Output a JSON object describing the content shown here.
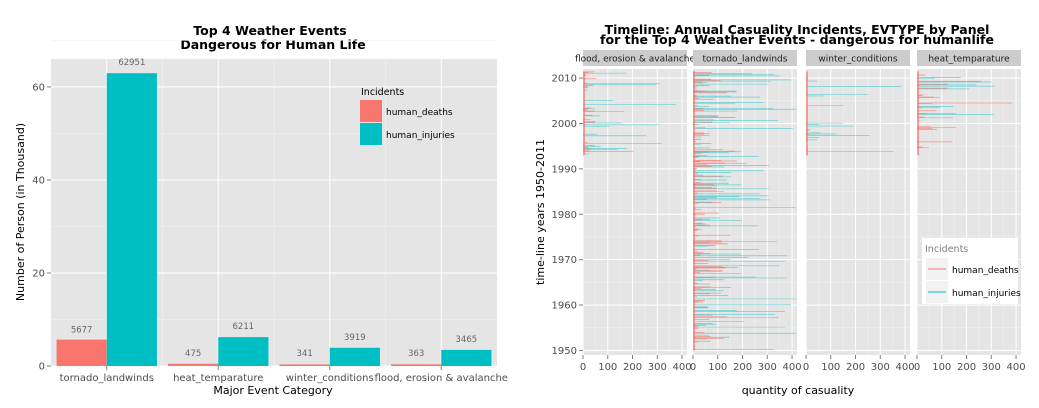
{
  "chart_data": [
    {
      "type": "bar",
      "title": "Top 4 Weather Events",
      "subtitle": "Dangerous for Human Life",
      "xlabel": "Major Event Category",
      "ylabel": "Number of Person  (in Thousand)",
      "categories": [
        "tornado_landwinds",
        "heat_temparature",
        "winter_conditions",
        "flood, erosion & avalanche"
      ],
      "series": [
        {
          "name": "human_deaths",
          "values": [
            5.677,
            0.475,
            0.341,
            0.363
          ],
          "labels": [
            "5677",
            "475",
            "341",
            "363"
          ],
          "color": "#F8766D"
        },
        {
          "name": "human_injuries",
          "values": [
            62.951,
            6.211,
            3.919,
            3.465
          ],
          "labels": [
            "62951",
            "6211",
            "3919",
            "3465"
          ],
          "color": "#00BFC4"
        }
      ],
      "ylim": [
        0,
        66
      ],
      "yticks": [
        0,
        20,
        40,
        60
      ],
      "grid": true,
      "legend": {
        "title": "Incidents",
        "position": "top-right"
      }
    },
    {
      "type": "bar",
      "orientation": "horizontal",
      "title": "Timeline: Annual Casuality Incidents, EVTYPE by Panel",
      "subtitle": "for the Top 4 Weather Events - dangerous for humanlife",
      "xlabel": "quantity of casuality",
      "ylabel": "time-line years 1950-2011",
      "panels": [
        "flood, erosion & avalanche",
        "tornado_landwinds",
        "winter_conditions",
        "heat_temparature"
      ],
      "xlim": [
        0,
        420
      ],
      "xticks": [
        0,
        100,
        200,
        300,
        400
      ],
      "ylim": [
        1949,
        2012
      ],
      "yticks": [
        1950,
        1960,
        1970,
        1980,
        1990,
        2000,
        2010
      ],
      "series_names": [
        "human_deaths",
        "human_injuries"
      ],
      "colors": [
        "#F8766D",
        "#00BFC4"
      ],
      "grid": true,
      "legend": {
        "title": "Incidents",
        "position": "right"
      }
    }
  ]
}
